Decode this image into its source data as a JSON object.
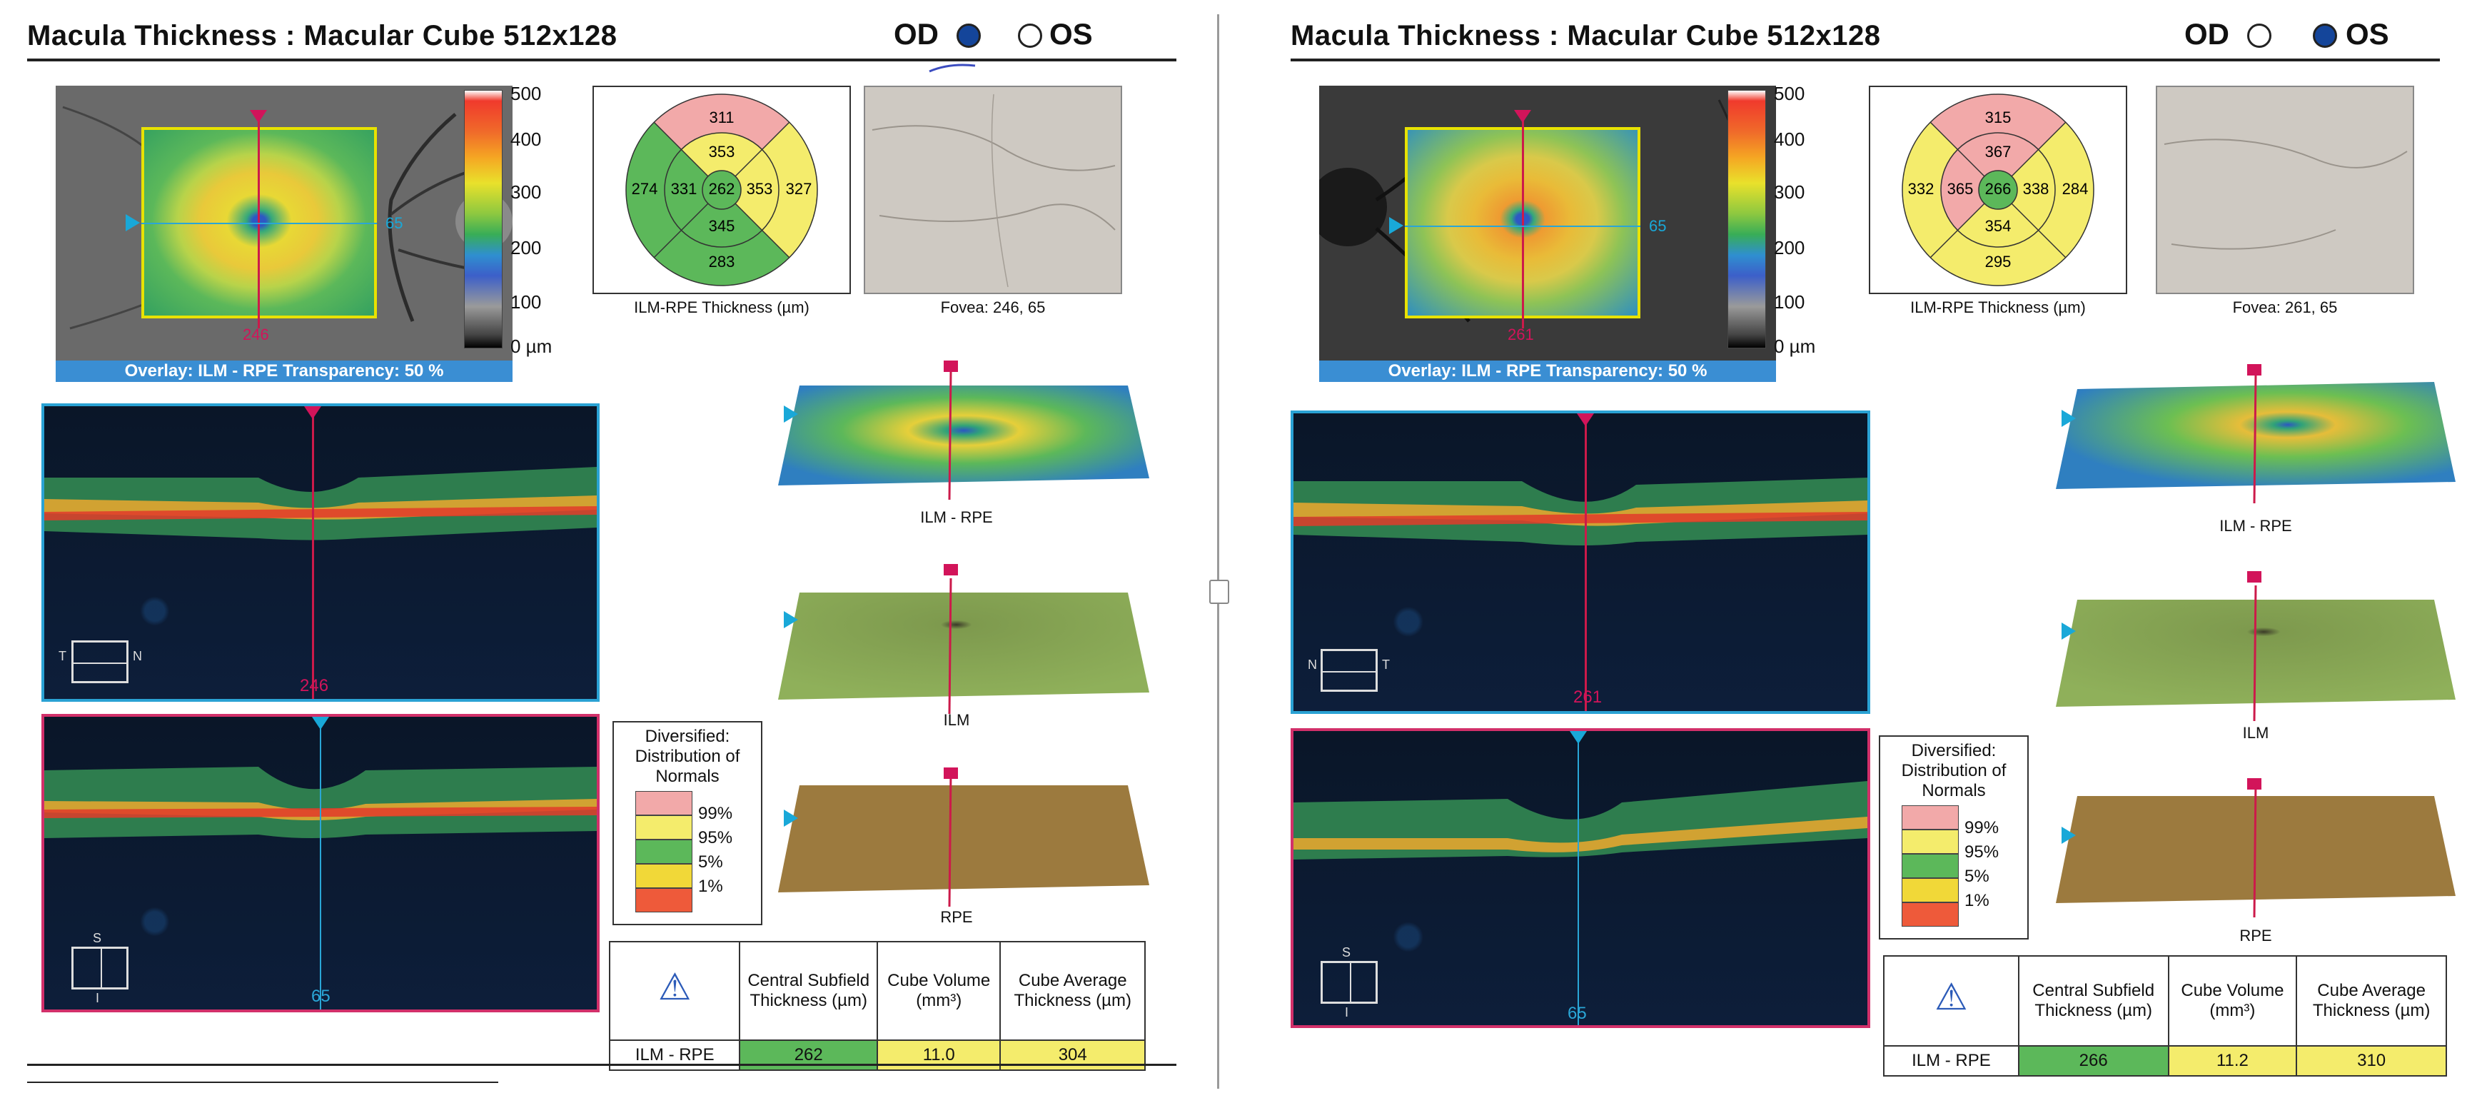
{
  "panels": {
    "od": {
      "title": "Macula Thickness : Macular Cube 512x128",
      "eye_od": "OD",
      "eye_os": "OS",
      "selected_eye": "OD",
      "fundus_pos_x": "246",
      "fundus_pos_y": "65",
      "overlay": "Overlay: ILM - RPE  Transparency: 50 %",
      "colorbar": [
        "500",
        "400",
        "300",
        "200",
        "100",
        "0 µm"
      ],
      "sectors": {
        "superior_outer": "311",
        "superior_inner": "353",
        "temporal_outer": "274",
        "temporal_inner": "331",
        "center": "262",
        "nasal_inner": "353",
        "nasal_outer": "327",
        "inferior_inner": "345",
        "inferior_outer": "283"
      },
      "thickness_caption": "ILM-RPE Thickness (µm)",
      "fovea_caption": "Fovea: 246, 65",
      "bscan_top_pos": "246",
      "bscan_top_orient": [
        "T",
        "N"
      ],
      "bscan_bottom_pos": "65",
      "bscan_bottom_orient": [
        "S",
        "I"
      ],
      "surface_labels": [
        "ILM - RPE",
        "ILM",
        "RPE"
      ],
      "legend_title": "Diversified: Distribution of Normals",
      "legend": [
        "99%",
        "95%",
        "5%",
        "1%"
      ],
      "table": {
        "headers": [
          "Central Subfield Thickness (µm)",
          "Cube Volume (mm³)",
          "Cube Average Thickness (µm)"
        ],
        "row_label": "ILM - RPE",
        "values": [
          "262",
          "11.0",
          "304"
        ]
      }
    },
    "os": {
      "title": "Macula Thickness : Macular Cube 512x128",
      "eye_od": "OD",
      "eye_os": "OS",
      "selected_eye": "OS",
      "fundus_pos_x": "261",
      "fundus_pos_y": "65",
      "overlay": "Overlay: ILM - RPE  Transparency: 50 %",
      "colorbar": [
        "500",
        "400",
        "300",
        "200",
        "100",
        "0 µm"
      ],
      "sectors": {
        "superior_outer": "315",
        "superior_inner": "367",
        "temporal_outer": "332",
        "temporal_inner": "365",
        "center": "266",
        "nasal_inner": "338",
        "nasal_outer": "284",
        "inferior_inner": "354",
        "inferior_outer": "295"
      },
      "thickness_caption": "ILM-RPE Thickness (µm)",
      "fovea_caption": "Fovea: 261, 65",
      "bscan_top_pos": "261",
      "bscan_top_orient": [
        "N",
        "T"
      ],
      "bscan_bottom_pos": "65",
      "bscan_bottom_orient": [
        "S",
        "I"
      ],
      "surface_labels": [
        "ILM - RPE",
        "ILM",
        "RPE"
      ],
      "legend_title": "Diversified: Distribution of Normals",
      "legend": [
        "99%",
        "95%",
        "5%",
        "1%"
      ],
      "table": {
        "headers": [
          "Central Subfield Thickness (µm)",
          "Cube Volume (mm³)",
          "Cube Average Thickness (µm)"
        ],
        "row_label": "ILM - RPE",
        "values": [
          "266",
          "11.2",
          "310"
        ]
      }
    }
  },
  "colors": {
    "pink": "#f2a9a9",
    "yellow": "#f4ec6c",
    "green": "#5cb85a",
    "red": "#ee5a3a",
    "header_blue": "#3a8ed3",
    "eye_fill": "#14459a"
  }
}
